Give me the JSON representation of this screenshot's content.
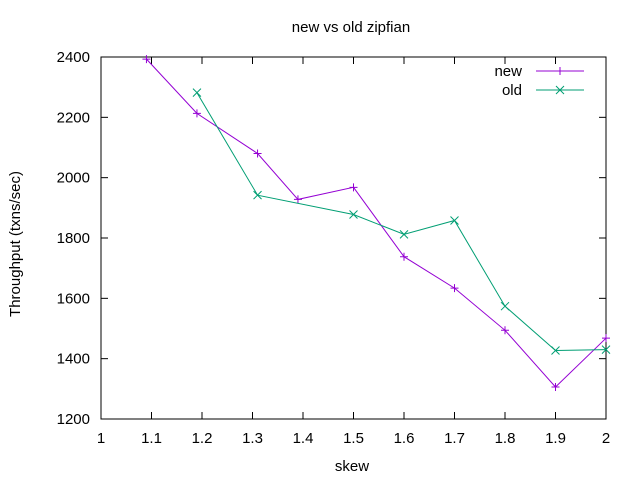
{
  "chart_data": {
    "type": "line",
    "title": "new vs old zipfian",
    "xlabel": "skew",
    "ylabel": "Throughput (txns/sec)",
    "xlim": [
      1,
      2
    ],
    "ylim": [
      1200,
      2400
    ],
    "x_ticks": [
      "1",
      "1.1",
      "1.2",
      "1.3",
      "1.4",
      "1.5",
      "1.6",
      "1.7",
      "1.8",
      "1.9",
      "2"
    ],
    "y_ticks": [
      "1200",
      "1400",
      "1600",
      "1800",
      "2000",
      "2200",
      "2400"
    ],
    "grid": false,
    "legend_position": "top-right",
    "series": [
      {
        "name": "new",
        "color": "#9400d3",
        "marker": "plus",
        "x": [
          1.09,
          1.19,
          1.31,
          1.39,
          1.5,
          1.6,
          1.7,
          1.8,
          1.9,
          2.0
        ],
        "y": [
          2393,
          2213,
          2080,
          1928,
          1968,
          1738,
          1634,
          1494,
          1306,
          1468
        ]
      },
      {
        "name": "old",
        "color": "#009e73",
        "marker": "cross",
        "x": [
          1.19,
          1.31,
          1.5,
          1.6,
          1.7,
          1.8,
          1.9,
          2.0
        ],
        "y": [
          2282,
          1942,
          1878,
          1812,
          1858,
          1574,
          1427,
          1430
        ]
      }
    ]
  }
}
